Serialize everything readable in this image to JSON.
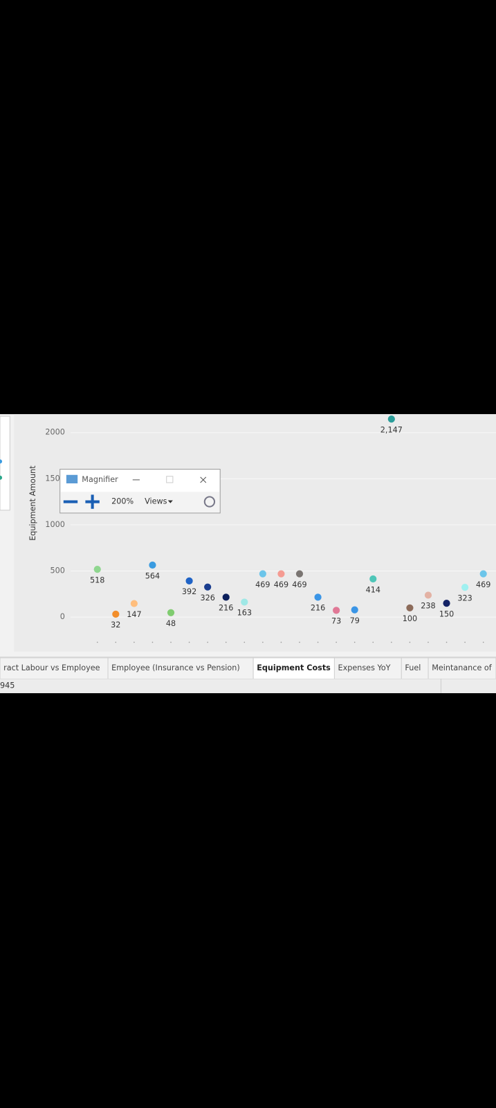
{
  "chart_data": {
    "type": "scatter",
    "y_label": "Equipment Amount",
    "categories": [
      null,
      null,
      null,
      null,
      null,
      null,
      null,
      null,
      null,
      null,
      null,
      null,
      null,
      null,
      null,
      null,
      null,
      null,
      null,
      null,
      null,
      null
    ],
    "values": [
      518,
      32,
      147,
      564,
      48,
      392,
      326,
      216,
      163,
      469,
      469,
      469,
      216,
      73,
      79,
      414,
      2147,
      100,
      238,
      150,
      323,
      469
    ],
    "value_labels": [
      "518",
      "32",
      "147",
      "564",
      "48",
      "392",
      "326",
      "216",
      "163",
      "469",
      "469",
      "469",
      "216",
      "73",
      "79",
      "414",
      "2,147",
      "100",
      "238",
      "150",
      "323",
      "469"
    ],
    "colors": [
      "#8fd68f",
      "#f28e2b",
      "#ffbe7d",
      "#3a9be0",
      "#80cc70",
      "#1f63c6",
      "#1a3d8f",
      "#0b1f5c",
      "#9fe8e6",
      "#6cc5ea",
      "#f59b92",
      "#7a7572",
      "#3a95e6",
      "#e07896",
      "#3a95e6",
      "#4fc6b8",
      "#2a9d99",
      "#8c6b5a",
      "#e3b2a4",
      "#142366",
      "#9ff0f0",
      "#6cc5ea"
    ],
    "ylim": [
      -250,
      2200
    ],
    "yticks": [
      0,
      500,
      1000,
      1500,
      2000
    ],
    "grid": true
  },
  "magnifier": {
    "title": "Magnifier",
    "zoom": "200%",
    "views": "Views"
  },
  "tabs": [
    "ract Labour vs Employee",
    "Employee (Insurance vs Pension)",
    "Equipment Costs",
    "Expenses YoY",
    "Fuel",
    "Meintanance of"
  ],
  "status": "945"
}
